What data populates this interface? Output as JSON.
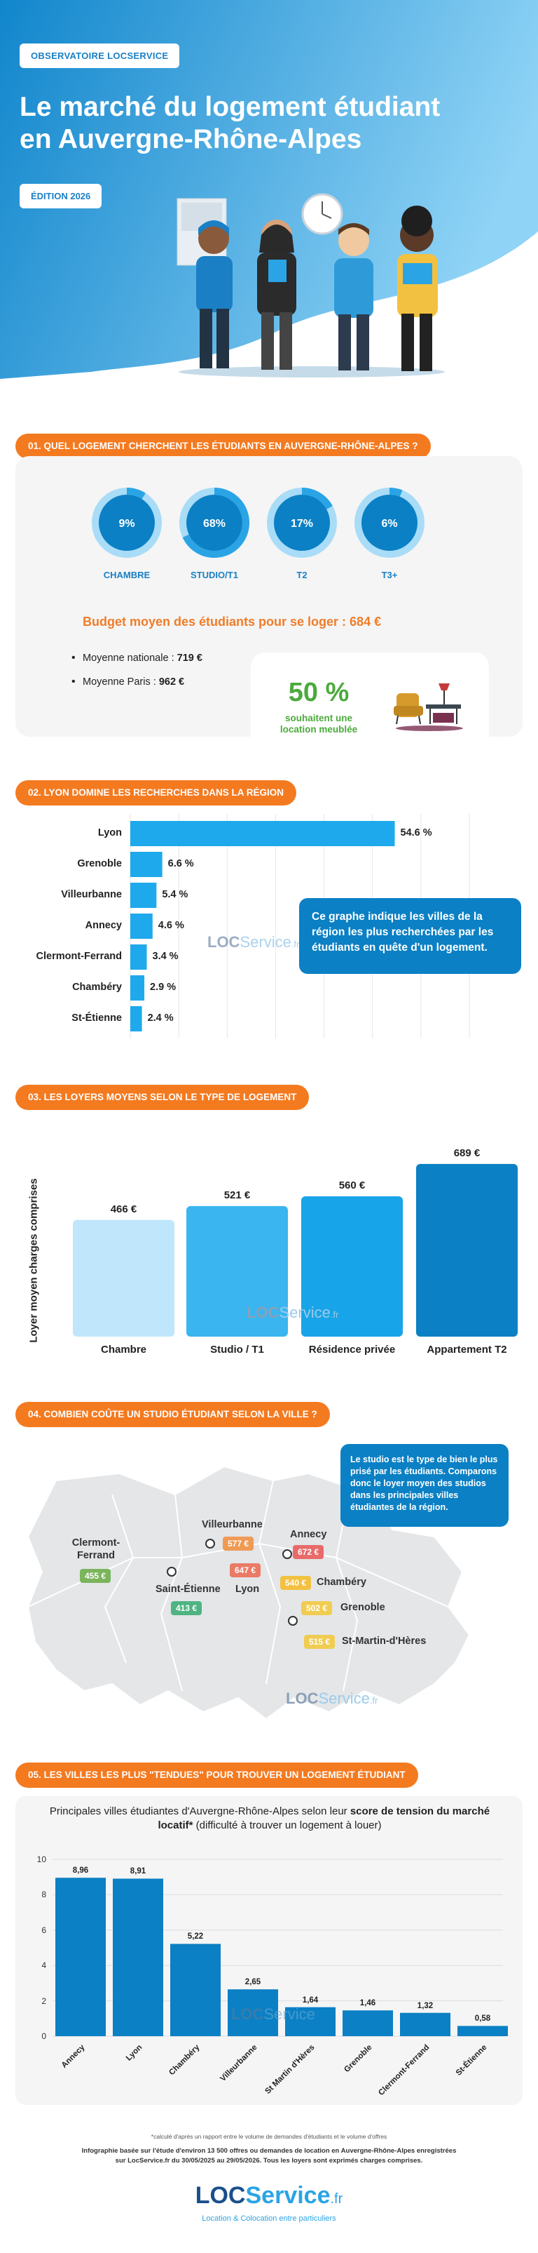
{
  "header": {
    "tag": "OBSERVATOIRE LOCSERVICE",
    "title_line1": "Le marché du logement étudiant",
    "title_line2": "en Auvergne-Rhône-Alpes",
    "edition": "ÉDITION 2026"
  },
  "colors": {
    "primary_blue": "#0b80c4",
    "light_blue": "#2aa4e5",
    "orange": "#f47a20",
    "green": "#4caa3d"
  },
  "section1": {
    "tag": "01. QUEL LOGEMENT CHERCHENT LES ÉTUDIANTS EN AUVERGNE-RHÔNE-ALPES ?",
    "donuts": [
      {
        "label": "CHAMBRE",
        "pct_text": "9%",
        "value": 9
      },
      {
        "label": "STUDIO/T1",
        "pct_text": "68%",
        "value": 68
      },
      {
        "label": "T2",
        "pct_text": "17%",
        "value": 17
      },
      {
        "label": "T3+",
        "pct_text": "6%",
        "value": 6
      }
    ],
    "budget": "Budget moyen des étudiants pour se loger : 684 €",
    "national_label": "Moyenne nationale : ",
    "national_value": "719 €",
    "paris_label": "Moyenne Paris : ",
    "paris_value": "962 €",
    "furnished_pct": "50 %",
    "furnished_text_line1": "souhaitent une",
    "furnished_text_line2": "location meublée"
  },
  "section2": {
    "tag": "02. LYON DOMINE LES RECHERCHES DANS LA RÉGION",
    "info": "Ce graphe indique les villes de la région les plus recherchées par les étudiants en quête d'un logement."
  },
  "section3": {
    "tag": "03. LES LOYERS MOYENS SELON LE TYPE DE LOGEMENT"
  },
  "section4": {
    "tag": "04. COMBIEN COÛTE UN STUDIO ÉTUDIANT SELON LA VILLE ?",
    "info": "Le studio est le type de bien le plus prisé par les étudiants. Comparons donc le loyer moyen des studios dans les principales villes étudiantes de la région.",
    "cities": [
      {
        "name_line1": "Clermont-",
        "name_line2": "Ferrand",
        "price": "455 €",
        "color": "#7ab55c"
      },
      {
        "name_line1": "Villeurbanne",
        "name_line2": "",
        "price": "577 €",
        "color": "#ef9a55"
      },
      {
        "name_line1": "Lyon",
        "name_line2": "",
        "price": "647 €",
        "color": "#ea7b66"
      },
      {
        "name_line1": "Saint-Étienne",
        "name_line2": "",
        "price": "413 €",
        "color": "#4fb482"
      },
      {
        "name_line1": "Annecy",
        "name_line2": "",
        "price": "672 €",
        "color": "#e86a6a"
      },
      {
        "name_line1": "Chambéry",
        "name_line2": "",
        "price": "540 €",
        "color": "#f3c141"
      },
      {
        "name_line1": "Grenoble",
        "name_line2": "",
        "price": "502 €",
        "color": "#f1cc52"
      },
      {
        "name_line1": "St-Martin-d'Hères",
        "name_line2": "",
        "price": "515 €",
        "color": "#f1cc52"
      }
    ]
  },
  "section5": {
    "tag": "05. LES VILLES LES PLUS \"TENDUES\" POUR TROUVER UN LOGEMENT ÉTUDIANT",
    "subtitle_a": "Principales villes étudiantes d'Auvergne-Rhône-Alpes selon leur ",
    "subtitle_b": "score de tension du marché locatif*",
    "subtitle_c": " (difficulté à trouver un logement à louer)"
  },
  "footer": {
    "note": "*calculé d'après un rapport entre le volume de demandes d'étudiants et le volume d'offres",
    "source_line1": "Infographie basée sur l'étude d'environ 13 500 offres ou demandes de location en Auvergne-Rhône-Alpes enregistrées",
    "source_line2": "sur LocService.fr du 30/05/2025 au 29/05/2026. Tous les loyers sont exprimés charges comprises.",
    "logo_a": "LOC",
    "logo_b": "Service",
    "logo_c": ".fr",
    "tagline": "Location & Colocation entre particuliers"
  },
  "watermark": {
    "a": "LOC",
    "b": "Service",
    "c": ".fr"
  },
  "chart_data": [
    {
      "type": "bar",
      "orientation": "horizontal",
      "categories": [
        "Lyon",
        "Grenoble",
        "Villeurbanne",
        "Annecy",
        "Clermont-Ferrand",
        "Chambéry",
        "St-Étienne"
      ],
      "values": [
        54.6,
        6.6,
        5.4,
        4.6,
        3.4,
        2.9,
        2.4
      ],
      "value_labels": [
        "54.6 %",
        "6.6 %",
        "5.4 %",
        "4.6 %",
        "3.4 %",
        "2.9 %",
        "2.4 %"
      ],
      "xlim": [
        0,
        70
      ]
    },
    {
      "type": "bar",
      "categories": [
        "Chambre",
        "Studio / T1",
        "Résidence privée",
        "Appartement T2"
      ],
      "values": [
        466,
        521,
        560,
        689
      ],
      "value_labels": [
        "466 €",
        "521 €",
        "560 €",
        "689 €"
      ],
      "ylabel": "Loyer moyen charges comprises",
      "ylim": [
        0,
        700
      ]
    },
    {
      "type": "bar",
      "categories": [
        "Annecy",
        "Lyon",
        "Chambéry",
        "Villeurbanne",
        "St Martin d'Hères",
        "Grenoble",
        "Clermont-Ferrand",
        "St-Étienne"
      ],
      "values": [
        8.96,
        8.91,
        5.22,
        2.65,
        1.64,
        1.46,
        1.32,
        0.58
      ],
      "value_labels": [
        "8,96",
        "8,91",
        "5,22",
        "2,65",
        "1,64",
        "1,46",
        "1,32",
        "0,58"
      ],
      "ylim": [
        0,
        10
      ],
      "yticks": [
        "0",
        "2",
        "4",
        "6",
        "8",
        "10"
      ],
      "grid": true
    }
  ]
}
